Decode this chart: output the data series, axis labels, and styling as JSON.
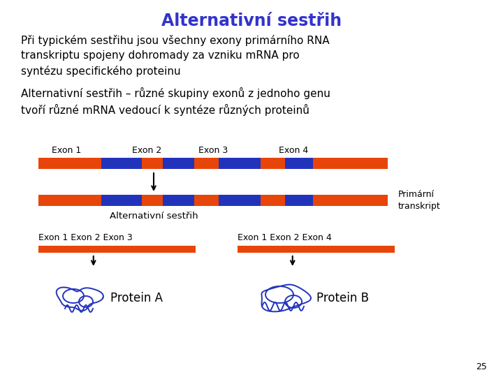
{
  "title": "Alternativní sestřih",
  "title_color": "#3333cc",
  "title_fontsize": 17,
  "body_text_1": "Při typickém sestřihu jsou všechny exony primárního RNA\ntranskriptu spojeny dohromady za vzniku mRNA pro\nsyntézu specifického proteinu",
  "body_text_2": "Alternativní sestřih – různé skupiny exonů z jednoho genu\ntvoří různé mRNA vedoucí k syntéze různých proteinů",
  "body_fontsize": 11.0,
  "exon_labels": [
    "Exon 1",
    "Exon 2",
    "Exon 3",
    "Exon 4"
  ],
  "bar_orange": "#e8450a",
  "bar_blue": "#2233bb",
  "primary_bar_label": "Primární\ntranskript",
  "alt_label": "Alternativní sestřih",
  "bottom_left_labels": "Exon 1 Exon 2 Exon 3",
  "bottom_right_labels": "Exon 1 Exon 2 Exon 4",
  "protein_a_label": "Protein A",
  "protein_b_label": "Protein B",
  "page_number": "25",
  "bg_color": "#ffffff",
  "text_color": "#000000"
}
